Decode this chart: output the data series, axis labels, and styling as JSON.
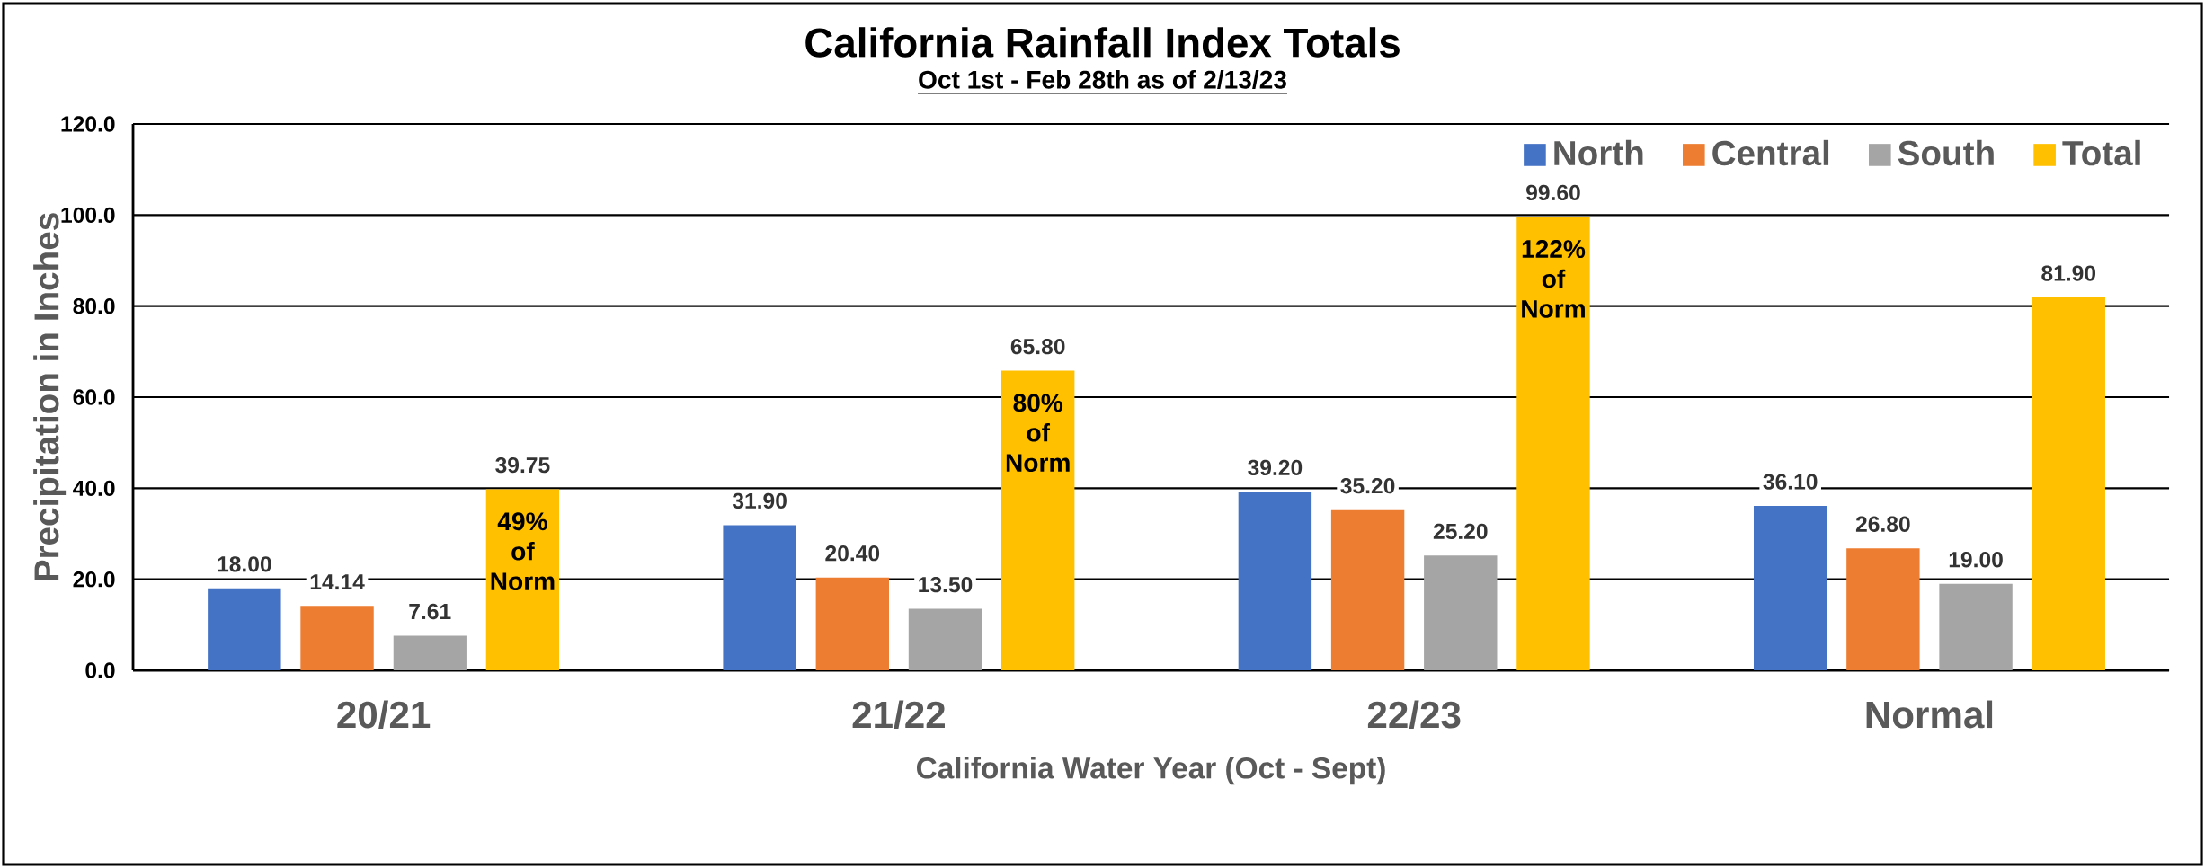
{
  "chart_data": {
    "type": "bar",
    "title": "California Rainfall Index Totals",
    "subtitle": "Oct 1st - Feb 28th as of 2/13/23",
    "xlabel": "California  Water Year (Oct - Sept)",
    "ylabel": "Precipitation in Inches",
    "categories": [
      "20/21",
      "21/22",
      "22/23",
      "Normal"
    ],
    "series": [
      {
        "name": "North",
        "color": "#4472c4",
        "values": [
          18.0,
          31.9,
          39.2,
          36.1
        ],
        "value_labels": [
          "18.00",
          "31.90",
          "39.20",
          "36.10"
        ]
      },
      {
        "name": "Central",
        "color": "#ed7d31",
        "values": [
          14.14,
          20.4,
          35.2,
          26.8
        ],
        "value_labels": [
          "14.14",
          "20.40",
          "35.20",
          "26.80"
        ]
      },
      {
        "name": "South",
        "color": "#a5a5a5",
        "values": [
          7.61,
          13.5,
          25.2,
          19.0
        ],
        "value_labels": [
          "7.61",
          "13.50",
          "25.20",
          "19.00"
        ]
      },
      {
        "name": "Total",
        "color": "#ffc000",
        "values": [
          39.75,
          65.8,
          99.6,
          81.9
        ],
        "value_labels": [
          "39.75",
          "65.80",
          "99.60",
          "81.90"
        ]
      }
    ],
    "ylim": [
      0,
      120
    ],
    "yticks": [
      {
        "value": 0,
        "label": "0.0"
      },
      {
        "value": 20,
        "label": "20.0"
      },
      {
        "value": 40,
        "label": "40.0"
      },
      {
        "value": 60,
        "label": "60.0"
      },
      {
        "value": 80,
        "label": "80.0"
      },
      {
        "value": 100,
        "label": "100.0"
      },
      {
        "value": 120,
        "label": "120.0"
      }
    ],
    "grid": "y",
    "legend": "top right",
    "annotations": [
      "49% of Norm",
      "80% of Norm",
      "122% of Norm"
    ]
  }
}
